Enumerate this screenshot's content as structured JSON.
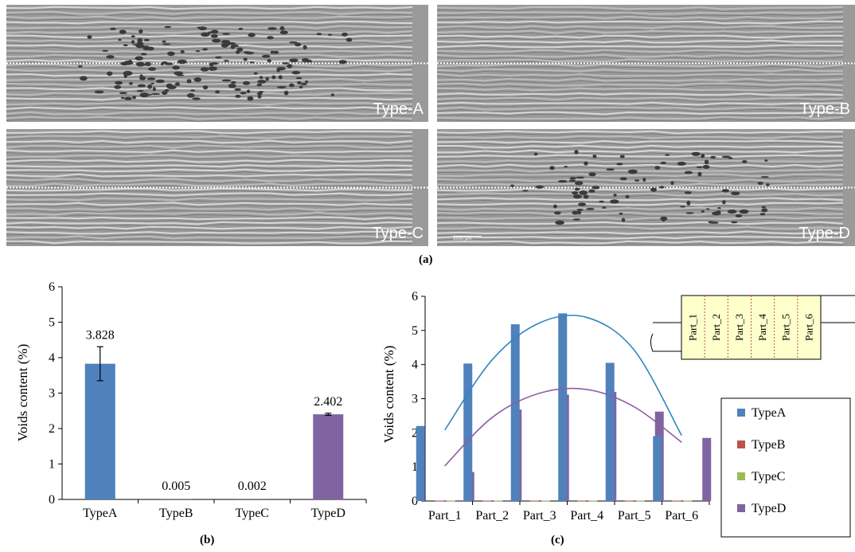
{
  "micrographs": [
    {
      "label": "Type-A",
      "void_density": "high"
    },
    {
      "label": "Type-B",
      "void_density": "none"
    },
    {
      "label": "Type-C",
      "void_density": "none"
    },
    {
      "label": "Type-D",
      "void_density": "medium",
      "scale_bar": "1000 μm"
    }
  ],
  "panel_labels": {
    "a": "(a)",
    "b": "(b)",
    "c": "(c)"
  },
  "chart_data": [
    {
      "type": "bar",
      "title": "",
      "xlabel": "",
      "ylabel": "Voids content (%)",
      "ylim": [
        0,
        6
      ],
      "yticks": [
        0,
        1,
        2,
        3,
        4,
        5,
        6
      ],
      "categories": [
        "TypeA",
        "TypeB",
        "TypeC",
        "TypeD"
      ],
      "values": [
        3.828,
        0.005,
        0.002,
        2.402
      ],
      "data_labels": [
        "3.828",
        "0.005",
        "0.002",
        "2.402"
      ],
      "error": [
        0.48,
        0,
        0,
        0.03
      ],
      "colors": [
        "#4f81bd",
        "#c0504d",
        "#9bbb59",
        "#8064a2"
      ],
      "grid": false
    },
    {
      "type": "bar",
      "title": "",
      "xlabel": "",
      "ylabel": "Voids content (%)",
      "ylim": [
        0,
        6
      ],
      "yticks": [
        0,
        1,
        2,
        3,
        4,
        5,
        6
      ],
      "categories": [
        "Part_1",
        "Part_2",
        "Part_3",
        "Part_4",
        "Part_5",
        "Part_6"
      ],
      "series": [
        {
          "name": "TypeA",
          "color": "#4f81bd",
          "values": [
            2.2,
            4.03,
            5.18,
            5.5,
            4.05,
            1.9
          ]
        },
        {
          "name": "TypeB",
          "color": "#c0504d",
          "values": [
            0.01,
            0.01,
            0.01,
            0.01,
            0.01,
            0.01
          ]
        },
        {
          "name": "TypeC",
          "color": "#9bbb59",
          "values": [
            0.01,
            0.01,
            0.01,
            0.01,
            0.01,
            0.01
          ]
        },
        {
          "name": "TypeD",
          "color": "#8064a2",
          "values": [
            0.85,
            2.68,
            3.12,
            3.2,
            2.62,
            1.85
          ]
        }
      ],
      "trendlines": [
        {
          "series": "TypeA",
          "color": "#2e86c1",
          "values": [
            2.08,
            4.14,
            5.22,
            5.38,
            4.42,
            1.92
          ]
        },
        {
          "series": "TypeD",
          "color": "#8e5ea2",
          "values": [
            1.03,
            2.45,
            3.16,
            3.27,
            2.76,
            1.72
          ]
        }
      ],
      "legend": {
        "placement": "right",
        "entries": [
          "TypeA",
          "TypeB",
          "TypeC",
          "TypeD"
        ]
      },
      "inset_parts": [
        "Part_1",
        "Part_2",
        "Part_3",
        "Part_4",
        "Part_5",
        "Part_6"
      ],
      "grid": false
    }
  ]
}
